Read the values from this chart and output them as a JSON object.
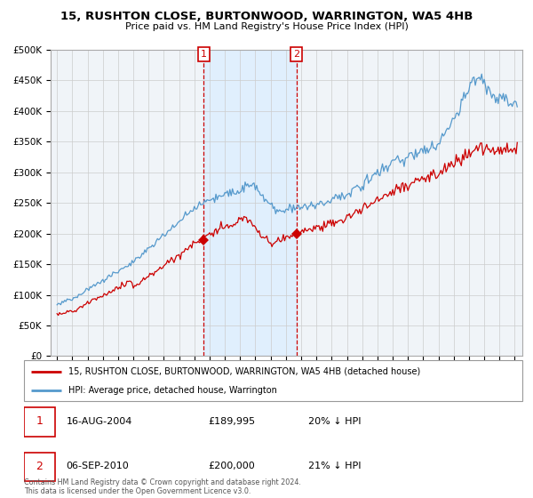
{
  "title1": "15, RUSHTON CLOSE, BURTONWOOD, WARRINGTON, WA5 4HB",
  "title2": "Price paid vs. HM Land Registry's House Price Index (HPI)",
  "sale1_price": 189995,
  "sale2_price": 200000,
  "legend1": "15, RUSHTON CLOSE, BURTONWOOD, WARRINGTON, WA5 4HB (detached house)",
  "legend2": "HPI: Average price, detached house, Warrington",
  "table1_date": "16-AUG-2004",
  "table1_price": "£189,995",
  "table1_hpi": "20% ↓ HPI",
  "table2_date": "06-SEP-2010",
  "table2_price": "£200,000",
  "table2_hpi": "21% ↓ HPI",
  "footer": "Contains HM Land Registry data © Crown copyright and database right 2024.\nThis data is licensed under the Open Government Licence v3.0.",
  "hpi_color": "#5599cc",
  "sale_color": "#cc0000",
  "vline_color": "#cc0000",
  "shade_color": "#ddeeff",
  "bg_color": "#f0f4f8",
  "ylim": [
    0,
    500000
  ],
  "yticks": [
    0,
    50000,
    100000,
    150000,
    200000,
    250000,
    300000,
    350000,
    400000,
    450000,
    500000
  ]
}
